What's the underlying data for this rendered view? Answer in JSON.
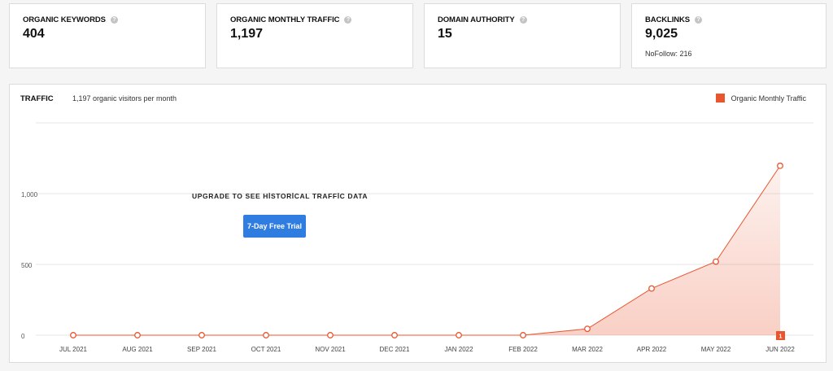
{
  "stats": [
    {
      "title": "ORGANIC KEYWORDS",
      "value": "404",
      "sub": ""
    },
    {
      "title": "ORGANIC MONTHLY TRAFFIC",
      "value": "1,197",
      "sub": ""
    },
    {
      "title": "DOMAIN AUTHORITY",
      "value": "15",
      "sub": ""
    },
    {
      "title": "BACKLINKS",
      "value": "9,025",
      "sub": "NoFollow: 216"
    }
  ],
  "traffic": {
    "title": "TRAFFIC",
    "subtitle": "1,197 organic visitors per month",
    "upgrade_text": "UPGRADE TO SEE HİSTORİCAL TRAFFİC DATA",
    "trial_button": "7-Day Free Trial",
    "marker_badge": "1"
  },
  "colors": {
    "series": "#e8552f",
    "button": "#2f7de1"
  },
  "chart_data": {
    "type": "area",
    "x": [
      "JUL 2021",
      "AUG 2021",
      "SEP 2021",
      "OCT 2021",
      "NOV 2021",
      "DEC 2021",
      "JAN 2022",
      "FEB 2022",
      "MAR 2022",
      "APR 2022",
      "MAY 2022",
      "JUN 2022"
    ],
    "series": [
      {
        "name": "Organic Monthly Traffic",
        "values": [
          0,
          0,
          0,
          0,
          0,
          0,
          0,
          0,
          45,
          330,
          520,
          1197
        ]
      }
    ],
    "y_ticks": [
      "0",
      "500",
      "1,000"
    ],
    "ylim": [
      0,
      1500
    ],
    "grid": true,
    "legend_position": "top-right"
  }
}
